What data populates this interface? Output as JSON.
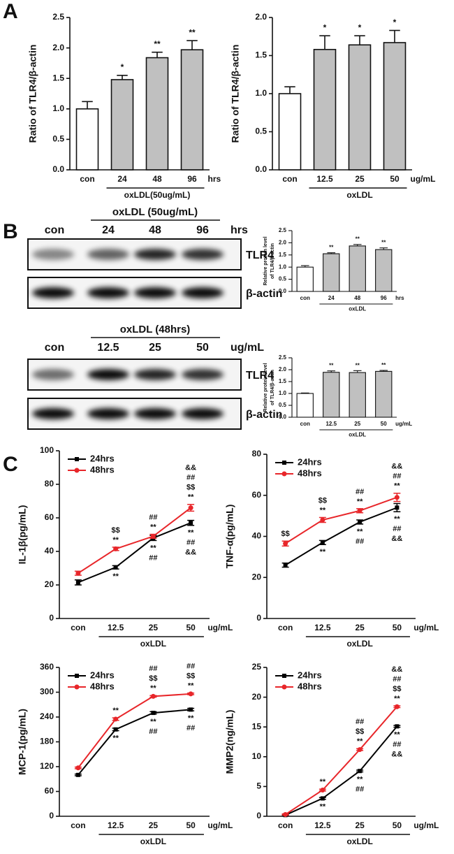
{
  "panel_labels": [
    "A",
    "B",
    "C"
  ],
  "blots": [
    {
      "header": "oxLDL (50ug/mL)",
      "lanes": [
        "con",
        "24",
        "48",
        "96"
      ],
      "unit": "hrs",
      "bands": [
        "TLR4",
        "β-actin"
      ]
    },
    {
      "header": "oxLDL (48hrs)",
      "lanes": [
        "con",
        "12.5",
        "25",
        "50"
      ],
      "unit": "ug/mL",
      "bands": [
        "TLR4",
        "β-actin"
      ]
    }
  ],
  "chart_data": [
    {
      "type": "bar",
      "ylabel": "Ratio of TLR4/β-actin",
      "categories": [
        "con",
        "24",
        "48",
        "96"
      ],
      "unit": "hrs",
      "group_label": "oxLDL(50ug/mL)",
      "values": [
        1.0,
        1.48,
        1.84,
        1.97
      ],
      "errors": [
        0.12,
        0.07,
        0.09,
        0.15
      ],
      "colors": [
        "#ffffff",
        "#c0c0c0",
        "#c0c0c0",
        "#c0c0c0"
      ],
      "significance": [
        null,
        "*",
        "**",
        "**"
      ],
      "ylim": [
        0,
        2.5
      ],
      "yticks": [
        {
          "value": 0,
          "label": "0.0"
        },
        0.5,
        {
          "value": 1,
          "label": "1.0"
        },
        1.5,
        {
          "value": 2,
          "label": "2.0"
        },
        2.5
      ]
    },
    {
      "type": "bar",
      "ylabel": "Ratio of TLR4/β-actin",
      "categories": [
        "con",
        "12.5",
        "25",
        "50"
      ],
      "unit": "ug/mL",
      "group_label": "oxLDL",
      "values": [
        1.0,
        1.58,
        1.64,
        1.67
      ],
      "errors": [
        0.09,
        0.18,
        0.12,
        0.16
      ],
      "colors": [
        "#ffffff",
        "#c0c0c0",
        "#c0c0c0",
        "#c0c0c0"
      ],
      "significance": [
        null,
        "*",
        "*",
        "*"
      ],
      "ylim": [
        0,
        2.0
      ],
      "yticks": [
        {
          "value": 0,
          "label": "0.0"
        },
        0.5,
        {
          "value": 1,
          "label": "1.0"
        },
        1.5,
        {
          "value": 2,
          "label": "2.0"
        }
      ]
    },
    {
      "type": "bar",
      "ylabel": [
        "Relative protein level",
        "of TLR4/β-actin"
      ],
      "categories": [
        "con",
        "24",
        "48",
        "96"
      ],
      "unit": "hrs",
      "group_label": "oxLDL",
      "values": [
        1.0,
        1.55,
        1.87,
        1.72
      ],
      "errors": [
        0.06,
        0.04,
        0.06,
        0.07
      ],
      "colors": [
        "#ffffff",
        "#c0c0c0",
        "#c0c0c0",
        "#c0c0c0"
      ],
      "significance": [
        null,
        "**",
        "**",
        "**"
      ],
      "ylim": [
        0,
        2.5
      ],
      "yticks": [
        {
          "value": 0,
          "label": "0.0"
        },
        0.5,
        {
          "value": 1,
          "label": "1.0"
        },
        1.5,
        {
          "value": 2,
          "label": "2.0"
        },
        2.5
      ]
    },
    {
      "type": "bar",
      "ylabel": [
        "Relative protein level",
        "of TLR4/β-actin"
      ],
      "categories": [
        "con",
        "12.5",
        "25",
        "50"
      ],
      "unit": "ug/mL",
      "group_label": "oxLDL",
      "values": [
        1.0,
        1.89,
        1.88,
        1.93
      ],
      "errors": [
        0.02,
        0.06,
        0.08,
        0.04
      ],
      "colors": [
        "#ffffff",
        "#c0c0c0",
        "#c0c0c0",
        "#c0c0c0"
      ],
      "significance": [
        null,
        "**",
        "**",
        "**"
      ],
      "ylim": [
        0,
        2.5
      ],
      "yticks": [
        {
          "value": 0,
          "label": "0.0"
        },
        0.5,
        {
          "value": 1,
          "label": "1.0"
        },
        1.5,
        {
          "value": 2,
          "label": "2.0"
        },
        2.5
      ]
    },
    {
      "type": "line",
      "ylabel": "IL-1β(pg/mL)",
      "categories": [
        "con",
        "12.5",
        "25",
        "50"
      ],
      "unit": "ug/mL",
      "group_label": "oxLDL",
      "legend": "upper left",
      "ylim": [
        0,
        100
      ],
      "yticks": [
        0,
        20,
        40,
        60,
        80,
        100
      ],
      "series": [
        {
          "name": "24hrs",
          "color": "#000000",
          "marker": "square",
          "values": [
            21.5,
            30.5,
            48,
            57
          ],
          "errors": [
            1.5,
            1,
            1.5,
            1.5
          ],
          "notes_side": "below",
          "notes": [
            [],
            [
              "**"
            ],
            [
              "**",
              "##"
            ],
            [
              "**",
              "##",
              "&&"
            ]
          ]
        },
        {
          "name": "48hrs",
          "color": "#e8262a",
          "marker": "circle",
          "values": [
            27,
            41.5,
            49,
            66
          ],
          "errors": [
            1.2,
            1,
            1.2,
            2
          ],
          "notes_side": "above",
          "notes": [
            [],
            [
              "$$",
              "**"
            ],
            [
              "##",
              "**"
            ],
            [
              "&&",
              "##",
              "$$",
              "**"
            ]
          ]
        }
      ]
    },
    {
      "type": "line",
      "ylabel": "TNF-α(pg/mL)",
      "categories": [
        "con",
        "12.5",
        "25",
        "50"
      ],
      "unit": "ug/mL",
      "group_label": "oxLDL",
      "legend": "upper left",
      "ylim": [
        0,
        80
      ],
      "yticks": [
        0,
        20,
        40,
        60,
        80
      ],
      "series": [
        {
          "name": "24hrs",
          "color": "#000000",
          "marker": "square",
          "values": [
            26,
            37,
            47,
            54
          ],
          "errors": [
            1,
            1,
            1,
            2
          ],
          "notes_side": "below",
          "notes": [
            [],
            [
              "**"
            ],
            [
              "**",
              "##"
            ],
            [
              "**",
              "##",
              "&&"
            ]
          ]
        },
        {
          "name": "48hrs",
          "color": "#e8262a",
          "marker": "circle",
          "values": [
            36.5,
            48,
            52.5,
            59
          ],
          "errors": [
            1.2,
            1.2,
            1,
            2
          ],
          "notes_side": "above",
          "notes": [
            [
              "$$"
            ],
            [
              "$$",
              "**"
            ],
            [
              "##",
              "**"
            ],
            [
              "&&",
              "##",
              "**"
            ]
          ]
        }
      ]
    },
    {
      "type": "line",
      "ylabel": "MCP-1(pg/mL)",
      "categories": [
        "con",
        "12.5",
        "25",
        "50"
      ],
      "unit": "ug/mL",
      "group_label": "oxLDL",
      "legend": "upper left",
      "ylim": [
        0,
        360
      ],
      "yticks": [
        0,
        60,
        120,
        180,
        240,
        300,
        360
      ],
      "series": [
        {
          "name": "24hrs",
          "color": "#000000",
          "marker": "square",
          "values": [
            100,
            210,
            250,
            258
          ],
          "errors": [
            2,
            3,
            3,
            3
          ],
          "notes_side": "below",
          "notes": [
            [],
            [
              "**"
            ],
            [
              "**",
              "##"
            ],
            [
              "**",
              "##"
            ]
          ]
        },
        {
          "name": "48hrs",
          "color": "#e8262a",
          "marker": "circle",
          "values": [
            117,
            235,
            290,
            296
          ],
          "errors": [
            2,
            3,
            2,
            2
          ],
          "notes_side": "above",
          "notes": [
            [],
            [
              "**"
            ],
            [
              "##",
              "$$",
              "**"
            ],
            [
              "##",
              "$$",
              "**"
            ]
          ]
        }
      ]
    },
    {
      "type": "line",
      "ylabel": "MMP2(ng/mL)",
      "categories": [
        "con",
        "12.5",
        "25",
        "50"
      ],
      "unit": "ug/mL",
      "group_label": "oxLDL",
      "legend": "upper left",
      "ylim": [
        0,
        25
      ],
      "yticks": [
        0,
        5,
        10,
        15,
        20,
        25
      ],
      "series": [
        {
          "name": "24hrs",
          "color": "#000000",
          "marker": "square",
          "values": [
            0.2,
            3.0,
            7.6,
            15.1
          ],
          "errors": [
            0.1,
            0.15,
            0.15,
            0.15
          ],
          "notes_side": "below",
          "notes": [
            [],
            [
              "**"
            ],
            [
              "**",
              "##"
            ],
            [
              "**",
              "##",
              "&&"
            ]
          ]
        },
        {
          "name": "48hrs",
          "color": "#e8262a",
          "marker": "circle",
          "values": [
            0.3,
            4.4,
            11.2,
            18.4
          ],
          "errors": [
            0.1,
            0.15,
            0.15,
            0.15
          ],
          "notes_side": "above",
          "notes": [
            [],
            [
              "**"
            ],
            [
              "##",
              "$$",
              "**"
            ],
            [
              "&&",
              "##",
              "$$",
              "**"
            ]
          ]
        }
      ]
    }
  ]
}
